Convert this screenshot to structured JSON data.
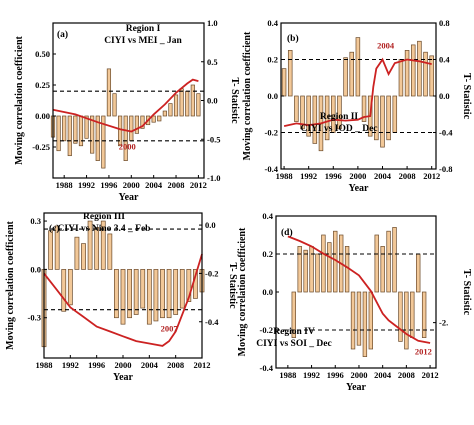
{
  "figure": {
    "ylabel_left": "Moving correlation coefficient",
    "ylabel_right": "T- Statistic",
    "xlabel": "Year"
  },
  "colors": {
    "bar_fill": "#f2c898",
    "bar_stroke": "#6b4a2a",
    "line": "#cc2222",
    "mark_text": "#b22222",
    "axis": "#000000"
  },
  "chart_data": [
    {
      "type": "bar",
      "panel_label": "(a)",
      "title_lines": [
        "Region I",
        "CIYI vs MEI _ Jan"
      ],
      "xlabel": "Year",
      "ylabel": "Moving correlation coefficient",
      "y2label": "T- Statistic",
      "xticks": [
        1988,
        1992,
        1996,
        2000,
        2004,
        2008,
        2012
      ],
      "xlim": [
        1986,
        2013
      ],
      "ylim": [
        -0.5,
        0.75
      ],
      "yticks": [
        -0.25,
        0.0,
        0.25,
        0.5
      ],
      "ytick_labels": [
        "-0.25",
        "0.00",
        "0.25",
        "0.50"
      ],
      "y2lim": [
        -1.0,
        1.0
      ],
      "y2ticks": [
        -1.0,
        -0.5,
        0.0,
        0.5,
        1.0
      ],
      "y2tick_labels": [
        "-1.0",
        "-0.5",
        "0.0",
        "0.5",
        "1.0"
      ],
      "hlines": [
        0.2,
        -0.2
      ],
      "x": [
        1986,
        1987,
        1988,
        1989,
        1990,
        1991,
        1992,
        1993,
        1994,
        1995,
        1996,
        1997,
        1998,
        1999,
        2000,
        2001,
        2002,
        2003,
        2004,
        2005,
        2006,
        2007,
        2008,
        2009,
        2010,
        2011,
        2012
      ],
      "values": [
        -0.17,
        -0.28,
        -0.2,
        -0.32,
        -0.22,
        -0.24,
        -0.18,
        -0.3,
        -0.36,
        -0.42,
        0.38,
        0.18,
        -0.24,
        -0.36,
        -0.2,
        -0.14,
        -0.1,
        -0.07,
        -0.05,
        -0.04,
        0.04,
        0.1,
        0.17,
        0.22,
        0.2,
        0.25,
        0.18
      ],
      "line": {
        "x": [
          1986,
          1990,
          1994,
          1998,
          2000,
          2002,
          2004,
          2006,
          2008,
          2010,
          2011,
          2012
        ],
        "y": [
          -0.12,
          -0.18,
          -0.28,
          -0.37,
          -0.4,
          -0.33,
          -0.18,
          -0.05,
          0.1,
          0.22,
          0.27,
          0.25
        ]
      },
      "mark": {
        "text": "2000",
        "x": 2000,
        "y": -0.63
      }
    },
    {
      "type": "bar",
      "panel_label": "(b)",
      "title_lines": [
        "Region II",
        "CIYI vs IOD _ Dec"
      ],
      "xlabel": "Year",
      "ylabel": "Moving correlation coefficient",
      "y2label": "T- Statistic",
      "xticks": [
        1988,
        1992,
        1996,
        2000,
        2004,
        2008,
        2012
      ],
      "xlim": [
        1987.5,
        2012.7
      ],
      "ylim": [
        -0.4,
        0.4
      ],
      "yticks": [
        -0.4,
        -0.2,
        0.0,
        0.2,
        0.4
      ],
      "ytick_labels": [
        "-0.4",
        "-0.2",
        "0.0",
        "0.2",
        "0.4"
      ],
      "y2lim": [
        -0.8,
        0.8
      ],
      "y2ticks": [
        -0.8,
        -0.4,
        0.0,
        0.4,
        0.8
      ],
      "y2tick_labels": [
        "-0.8",
        "-0.4",
        "0.0",
        "0.4",
        "0.8"
      ],
      "hlines": [
        0.2,
        -0.2
      ],
      "x": [
        1988,
        1989,
        1990,
        1991,
        1992,
        1993,
        1994,
        1995,
        1996,
        1997,
        1998,
        1999,
        2000,
        2001,
        2002,
        2003,
        2004,
        2005,
        2006,
        2007,
        2008,
        2009,
        2010,
        2011,
        2012
      ],
      "values": [
        0.15,
        0.25,
        -0.14,
        -0.18,
        -0.22,
        -0.26,
        -0.3,
        -0.24,
        -0.2,
        -0.18,
        0.21,
        0.24,
        0.32,
        -0.14,
        -0.22,
        -0.24,
        -0.28,
        -0.24,
        -0.2,
        0.2,
        0.25,
        0.28,
        0.3,
        0.24,
        0.22
      ],
      "line": {
        "x": [
          1988,
          1990,
          1992,
          1994,
          1996,
          1998,
          2000,
          2001,
          2002,
          2002.5,
          2003,
          2004,
          2005,
          2006,
          2008,
          2010,
          2012
        ],
        "y": [
          -0.33,
          -0.3,
          -0.32,
          -0.3,
          -0.26,
          -0.27,
          -0.26,
          -0.23,
          -0.22,
          0.1,
          0.3,
          0.4,
          0.24,
          0.36,
          0.4,
          0.38,
          0.35
        ]
      },
      "mark": {
        "text": "2004",
        "x": 2004.5,
        "y": 0.52
      }
    },
    {
      "type": "bar",
      "panel_label": "(c)",
      "title_lines": [
        "Region III",
        "CIYI vs Nino 3.4 _ Feb"
      ],
      "xlabel": "Year",
      "ylabel": "Moving correlation coefficient",
      "y2label": "T- Statistic",
      "xticks": [
        1988,
        1992,
        1996,
        2000,
        2004,
        2008,
        2012
      ],
      "xlim": [
        1988,
        2012
      ],
      "ylim": [
        -0.55,
        0.35
      ],
      "yticks": [
        -0.3,
        0.0,
        0.3
      ],
      "ytick_labels": [
        "-0.3",
        "0.0",
        "0.3"
      ],
      "y2lim": [
        -0.55,
        0.05
      ],
      "y2ticks": [
        -0.4,
        -0.2,
        0.0
      ],
      "y2tick_labels": [
        "-0.4",
        "-0.2",
        "0.0"
      ],
      "hlines": [
        0.25,
        -0.25
      ],
      "x": [
        1988,
        1989,
        1990,
        1991,
        1992,
        1993,
        1994,
        1995,
        1996,
        1997,
        1998,
        1999,
        2000,
        2001,
        2002,
        2003,
        2004,
        2005,
        2006,
        2007,
        2008,
        2009,
        2010,
        2011,
        2012
      ],
      "values": [
        -0.48,
        0.24,
        0.27,
        -0.26,
        -0.22,
        0.2,
        0.16,
        0.3,
        0.26,
        0.3,
        0.22,
        -0.3,
        -0.34,
        -0.3,
        -0.28,
        -0.24,
        -0.34,
        -0.32,
        -0.3,
        -0.3,
        -0.28,
        -0.24,
        -0.2,
        -0.18,
        -0.14
      ],
      "line": {
        "x": [
          1988,
          1990,
          1992,
          1994,
          1996,
          1998,
          2000,
          2002,
          2004,
          2006,
          2007,
          2008,
          2010,
          2012
        ],
        "y": [
          -0.2,
          -0.27,
          -0.34,
          -0.38,
          -0.42,
          -0.44,
          -0.46,
          -0.48,
          -0.49,
          -0.5,
          -0.48,
          -0.44,
          -0.3,
          -0.12
        ]
      },
      "mark": {
        "text": "2007",
        "x": 2007,
        "y": -0.44
      }
    },
    {
      "type": "bar",
      "panel_label": "(d)",
      "title_lines": [
        "Region IV",
        "CIYI vs SOI _ Dec"
      ],
      "xlabel": "Year",
      "ylabel": "Moving correlation coefficient",
      "y2label": "T- Statistic",
      "xticks": [
        1988,
        1992,
        1996,
        2000,
        2004,
        2008,
        2012
      ],
      "xlim": [
        1986,
        2013
      ],
      "ylim": [
        -0.4,
        0.4
      ],
      "yticks": [
        -0.4,
        -0.2,
        0.0,
        0.2,
        0.4
      ],
      "ytick_labels": [
        "-0.4",
        "-0.2",
        "0.0",
        "0.2",
        "0.4"
      ],
      "y2lim": [
        -3.0,
        0.35
      ],
      "y2ticks": [
        -2.0
      ],
      "y2tick_labels": [
        "-2."
      ],
      "hlines": [
        0.2,
        -0.2
      ],
      "x": [
        1989,
        1990,
        1991,
        1992,
        1993,
        1994,
        1995,
        1996,
        1997,
        1998,
        1999,
        2000,
        2001,
        2002,
        2003,
        2004,
        2005,
        2006,
        2007,
        2008,
        2009,
        2010,
        2011
      ],
      "values": [
        -0.24,
        0.24,
        0.22,
        0.24,
        0.2,
        0.3,
        0.26,
        0.32,
        0.3,
        0.24,
        -0.3,
        -0.28,
        -0.34,
        -0.3,
        0.3,
        0.24,
        0.32,
        0.34,
        -0.26,
        -0.3,
        -0.24,
        0.2,
        -0.24
      ],
      "line": {
        "x": [
          1988,
          1990,
          1992,
          1994,
          1996,
          1998,
          2000,
          2002,
          2003,
          2004,
          2005,
          2006,
          2008,
          2010,
          2012
        ],
        "y": [
          -0.1,
          -0.2,
          -0.32,
          -0.48,
          -0.62,
          -0.78,
          -0.96,
          -1.3,
          -1.55,
          -1.8,
          -1.95,
          -2.05,
          -2.25,
          -2.4,
          -2.45
        ]
      },
      "mark": {
        "text": "2012",
        "x": 2011.2,
        "y": -2.7
      }
    }
  ]
}
